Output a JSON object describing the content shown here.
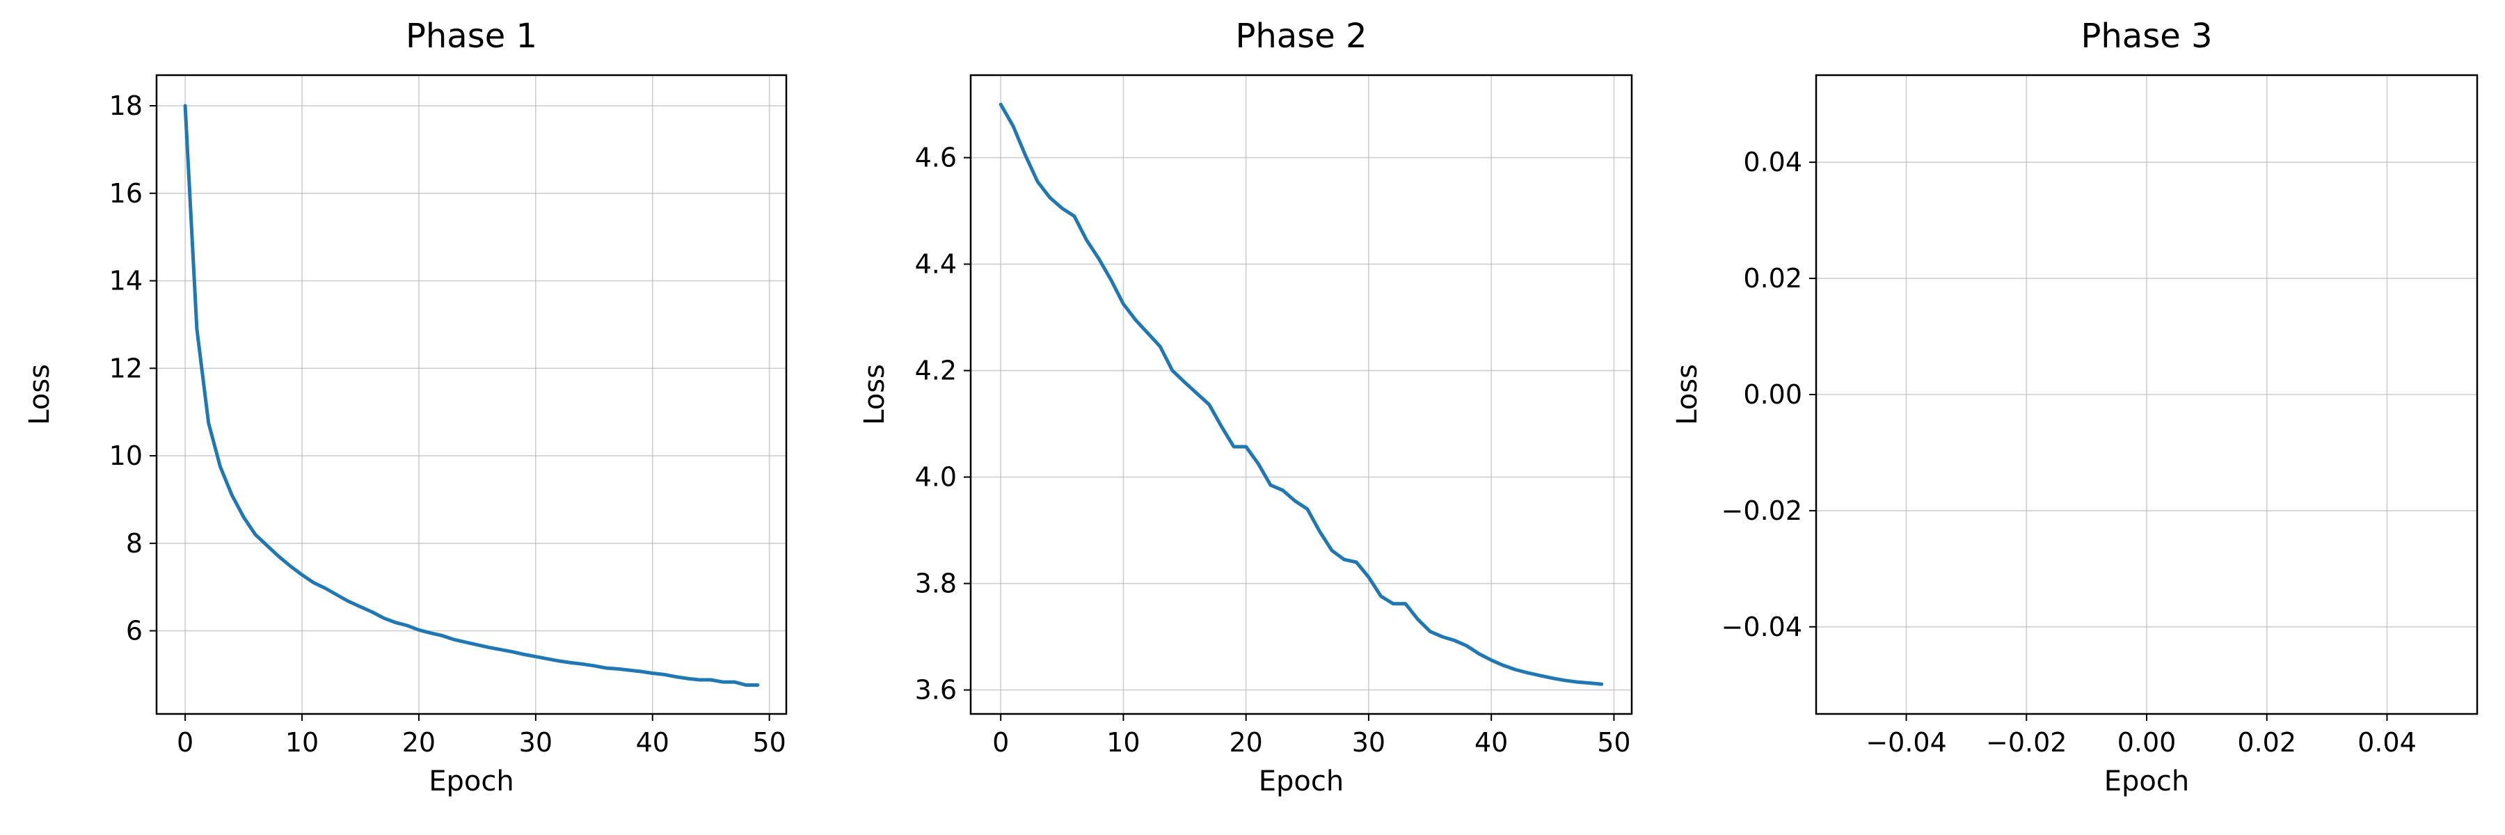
{
  "chart_data": [
    {
      "type": "line",
      "title": "Phase 1",
      "xlabel": "Epoch",
      "ylabel": "Loss",
      "xlim": [
        -2.45,
        51.45
      ],
      "ylim": [
        4.1,
        18.7
      ],
      "xticks": [
        0,
        10,
        20,
        30,
        40,
        50
      ],
      "yticks": [
        6,
        8,
        10,
        12,
        14,
        16,
        18
      ],
      "xtick_labels": [
        "0",
        "10",
        "20",
        "30",
        "40",
        "50"
      ],
      "ytick_labels": [
        "6",
        "8",
        "10",
        "12",
        "14",
        "16",
        "18"
      ],
      "grid": true,
      "color": "#1f77b4",
      "x": [
        0,
        1,
        2,
        3,
        4,
        5,
        6,
        7,
        8,
        9,
        10,
        11,
        12,
        13,
        14,
        15,
        16,
        17,
        18,
        19,
        20,
        21,
        22,
        23,
        24,
        25,
        26,
        27,
        28,
        29,
        30,
        31,
        32,
        33,
        34,
        35,
        36,
        37,
        38,
        39,
        40,
        41,
        42,
        43,
        44,
        45,
        46,
        47,
        48,
        49
      ],
      "y": [
        18.0,
        12.9,
        10.75,
        9.75,
        9.1,
        8.6,
        8.2,
        7.95,
        7.7,
        7.48,
        7.28,
        7.1,
        6.97,
        6.82,
        6.67,
        6.55,
        6.43,
        6.29,
        6.19,
        6.12,
        6.02,
        5.95,
        5.89,
        5.8,
        5.74,
        5.68,
        5.62,
        5.57,
        5.52,
        5.46,
        5.41,
        5.36,
        5.31,
        5.27,
        5.24,
        5.2,
        5.15,
        5.13,
        5.1,
        5.07,
        5.03,
        5.0,
        4.95,
        4.91,
        4.88,
        4.88,
        4.83,
        4.83,
        4.76,
        4.76
      ]
    },
    {
      "type": "line",
      "title": "Phase 2",
      "xlabel": "Epoch",
      "ylabel": "Loss",
      "xlim": [
        -2.45,
        51.45
      ],
      "ylim": [
        3.555,
        4.755
      ],
      "xticks": [
        0,
        10,
        20,
        30,
        40,
        50
      ],
      "yticks": [
        3.6,
        3.8,
        4.0,
        4.2,
        4.4,
        4.6
      ],
      "xtick_labels": [
        "0",
        "10",
        "20",
        "30",
        "40",
        "50"
      ],
      "ytick_labels": [
        "3.6",
        "3.8",
        "4.0",
        "4.2",
        "4.4",
        "4.6"
      ],
      "grid": true,
      "color": "#1f77b4",
      "x": [
        0,
        1,
        2,
        3,
        4,
        5,
        6,
        7,
        8,
        9,
        10,
        11,
        12,
        13,
        14,
        15,
        16,
        17,
        18,
        19,
        20,
        21,
        22,
        23,
        24,
        25,
        26,
        27,
        28,
        29,
        30,
        31,
        32,
        33,
        34,
        35,
        36,
        37,
        38,
        39,
        40,
        41,
        42,
        43,
        44,
        45,
        46,
        47,
        48,
        49
      ],
      "y": [
        4.7,
        4.66,
        4.605,
        4.555,
        4.525,
        4.505,
        4.49,
        4.445,
        4.41,
        4.37,
        4.325,
        4.295,
        4.27,
        4.245,
        4.2,
        4.178,
        4.157,
        4.136,
        4.095,
        4.057,
        4.057,
        4.025,
        3.985,
        3.975,
        3.955,
        3.94,
        3.898,
        3.862,
        3.845,
        3.84,
        3.812,
        3.776,
        3.762,
        3.762,
        3.733,
        3.71,
        3.7,
        3.693,
        3.683,
        3.668,
        3.656,
        3.646,
        3.638,
        3.632,
        3.627,
        3.622,
        3.618,
        3.615,
        3.613,
        3.611
      ]
    },
    {
      "type": "line",
      "title": "Phase 3",
      "xlabel": "Epoch",
      "ylabel": "Loss",
      "xlim": [
        -0.055,
        0.055
      ],
      "ylim": [
        -0.055,
        0.055
      ],
      "xticks": [
        -0.04,
        -0.02,
        0.0,
        0.02,
        0.04
      ],
      "yticks": [
        -0.04,
        -0.02,
        0.0,
        0.02,
        0.04
      ],
      "xtick_labels": [
        "−0.04",
        "−0.02",
        "0.00",
        "0.02",
        "0.04"
      ],
      "ytick_labels": [
        "−0.04",
        "−0.02",
        "0.00",
        "0.02",
        "0.04"
      ],
      "grid": true,
      "color": "#1f77b4",
      "x": [],
      "y": []
    }
  ]
}
